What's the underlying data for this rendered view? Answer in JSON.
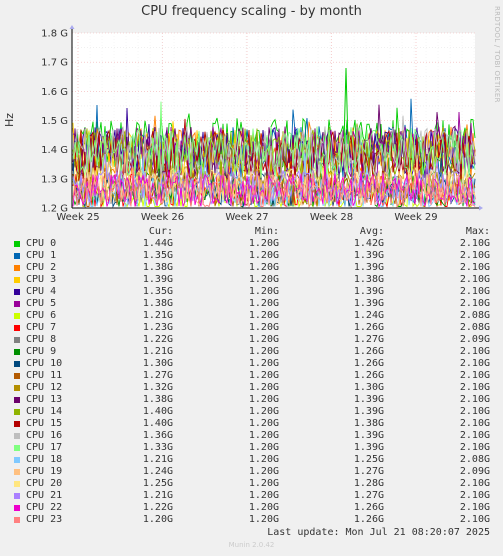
{
  "title": "CPU frequency scaling - by month",
  "side_credit": "RRDTOOL / TOBI OETIKER",
  "ylabel": "Hz",
  "legend_headers": {
    "cur": "Cur:",
    "min": "Min:",
    "avg": "Avg:",
    "max": "Max:"
  },
  "last_update": "Last update:  Mon Jul 21 08:20:07 2025",
  "footer": "Munin 2.0.42",
  "chart_data": {
    "type": "line",
    "title": "CPU frequency scaling - by month",
    "ylabel": "Hz",
    "ylim": [
      1.2,
      1.8
    ],
    "y_ticks": [
      "1.2 G",
      "1.3 G",
      "1.4 G",
      "1.5 G",
      "1.6 G",
      "1.7 G",
      "1.8 G"
    ],
    "x_ticks": [
      "Week 25",
      "Week 26",
      "Week 27",
      "Week 28",
      "Week 29"
    ],
    "grid": true,
    "legend_position": "bottom",
    "series": [
      {
        "name": "CPU 0",
        "color": "#00cc00",
        "cur": "1.44G",
        "min": "1.20G",
        "avg": "1.42G",
        "max": "2.10G"
      },
      {
        "name": "CPU 1",
        "color": "#0066b3",
        "cur": "1.35G",
        "min": "1.20G",
        "avg": "1.39G",
        "max": "2.10G"
      },
      {
        "name": "CPU 2",
        "color": "#ff8000",
        "cur": "1.38G",
        "min": "1.20G",
        "avg": "1.39G",
        "max": "2.10G"
      },
      {
        "name": "CPU 3",
        "color": "#ffcc00",
        "cur": "1.39G",
        "min": "1.20G",
        "avg": "1.38G",
        "max": "2.10G"
      },
      {
        "name": "CPU 4",
        "color": "#330099",
        "cur": "1.35G",
        "min": "1.20G",
        "avg": "1.39G",
        "max": "2.10G"
      },
      {
        "name": "CPU 5",
        "color": "#990099",
        "cur": "1.38G",
        "min": "1.20G",
        "avg": "1.39G",
        "max": "2.10G"
      },
      {
        "name": "CPU 6",
        "color": "#ccff00",
        "cur": "1.21G",
        "min": "1.20G",
        "avg": "1.24G",
        "max": "2.08G"
      },
      {
        "name": "CPU 7",
        "color": "#ff0000",
        "cur": "1.23G",
        "min": "1.20G",
        "avg": "1.26G",
        "max": "2.08G"
      },
      {
        "name": "CPU 8",
        "color": "#808080",
        "cur": "1.22G",
        "min": "1.20G",
        "avg": "1.27G",
        "max": "2.09G"
      },
      {
        "name": "CPU 9",
        "color": "#008f00",
        "cur": "1.21G",
        "min": "1.20G",
        "avg": "1.26G",
        "max": "2.10G"
      },
      {
        "name": "CPU 10",
        "color": "#00487d",
        "cur": "1.30G",
        "min": "1.20G",
        "avg": "1.26G",
        "max": "2.10G"
      },
      {
        "name": "CPU 11",
        "color": "#b35a00",
        "cur": "1.27G",
        "min": "1.20G",
        "avg": "1.26G",
        "max": "2.10G"
      },
      {
        "name": "CPU 12",
        "color": "#b38f00",
        "cur": "1.32G",
        "min": "1.20G",
        "avg": "1.30G",
        "max": "2.10G"
      },
      {
        "name": "CPU 13",
        "color": "#6b006b",
        "cur": "1.38G",
        "min": "1.20G",
        "avg": "1.39G",
        "max": "2.10G"
      },
      {
        "name": "CPU 14",
        "color": "#8fb300",
        "cur": "1.40G",
        "min": "1.20G",
        "avg": "1.39G",
        "max": "2.10G"
      },
      {
        "name": "CPU 15",
        "color": "#b30000",
        "cur": "1.40G",
        "min": "1.20G",
        "avg": "1.38G",
        "max": "2.10G"
      },
      {
        "name": "CPU 16",
        "color": "#bebebe",
        "cur": "1.36G",
        "min": "1.20G",
        "avg": "1.39G",
        "max": "2.10G"
      },
      {
        "name": "CPU 17",
        "color": "#80ff80",
        "cur": "1.33G",
        "min": "1.20G",
        "avg": "1.39G",
        "max": "2.10G"
      },
      {
        "name": "CPU 18",
        "color": "#80c9ff",
        "cur": "1.21G",
        "min": "1.20G",
        "avg": "1.25G",
        "max": "2.08G"
      },
      {
        "name": "CPU 19",
        "color": "#ffc080",
        "cur": "1.24G",
        "min": "1.20G",
        "avg": "1.27G",
        "max": "2.09G"
      },
      {
        "name": "CPU 20",
        "color": "#ffe680",
        "cur": "1.25G",
        "min": "1.20G",
        "avg": "1.28G",
        "max": "2.10G"
      },
      {
        "name": "CPU 21",
        "color": "#aa80ff",
        "cur": "1.21G",
        "min": "1.20G",
        "avg": "1.27G",
        "max": "2.10G"
      },
      {
        "name": "CPU 22",
        "color": "#ee00cc",
        "cur": "1.22G",
        "min": "1.20G",
        "avg": "1.26G",
        "max": "2.10G"
      },
      {
        "name": "CPU 23",
        "color": "#ff8080",
        "cur": "1.20G",
        "min": "1.20G",
        "avg": "1.26G",
        "max": "2.10G"
      }
    ]
  }
}
